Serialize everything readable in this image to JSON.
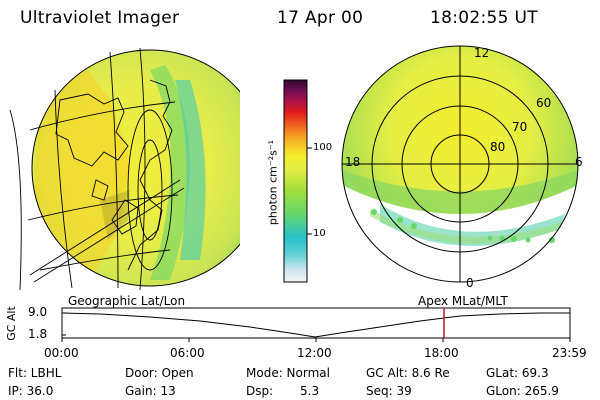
{
  "header": {
    "instrument": "Ultraviolet Imager",
    "date": "17 Apr 00",
    "time": "18:02:55 UT"
  },
  "colorbar": {
    "unit_label": "photon cm⁻²s⁻¹",
    "ticks": [
      "100",
      "10"
    ],
    "colors": [
      "#f4f7f8",
      "#cfe6ee",
      "#5fd0d6",
      "#27c2c8",
      "#66d86a",
      "#a6df3a",
      "#e5ee44",
      "#f3ee2d",
      "#f7d22a",
      "#f5a11f",
      "#ee5c20",
      "#e01b1b",
      "#a6114a",
      "#6e0c55",
      "#2d0930"
    ]
  },
  "polar_plot": {
    "mlt_labels": [
      "12",
      "18",
      "6",
      "0"
    ],
    "lat_labels": [
      "60",
      "70",
      "80"
    ]
  },
  "timeline": {
    "left_label": "Geographic Lat/Lon",
    "right_label": "Apex MLat/MLT",
    "y_axis_label": "GC Alt",
    "y_ticks": [
      "9.0",
      "1.8"
    ],
    "x_ticks": [
      "00:00",
      "06:00",
      "12:00",
      "18:00",
      "23:59"
    ],
    "current_time_fraction": 0.752
  },
  "info": {
    "filter_label": "Flt: LBHL",
    "door_label": "Door: Open",
    "mode_label": "Mode: Normal",
    "gc_alt_label": "GC Alt: 8.6 Re",
    "glat_label": "GLat: 69.3",
    "ip_label": "IP: 36.0",
    "gain_label": "Gain: 13",
    "dsp_label": "Dsp:",
    "dsp_value": "5.3",
    "seq_label": "Seq: 39",
    "glon_label": "GLon: 265.9"
  }
}
